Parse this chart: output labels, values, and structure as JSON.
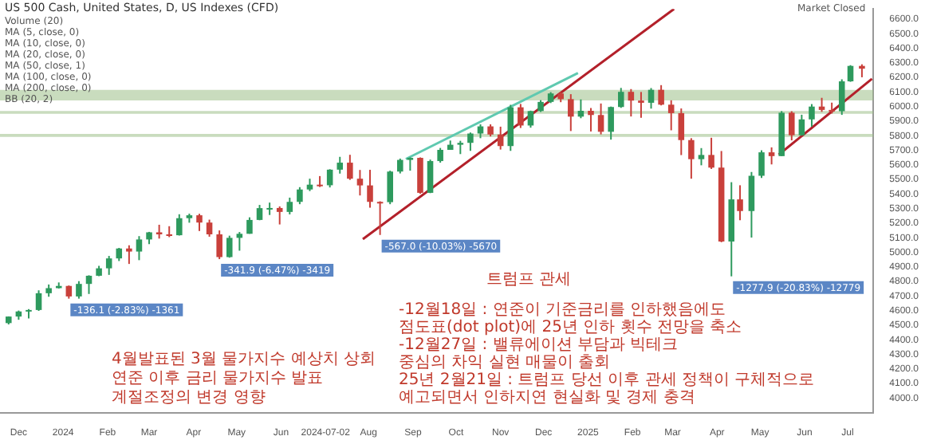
{
  "chart_data": {
    "type": "candlestick",
    "title": "US 500 Cash, United States, D, US Indexes (CFD)",
    "x": [
      "2023-11-24",
      "2023-12-01",
      "2023-12-08",
      "2023-12-15",
      "2023-12-22",
      "2023-12-29",
      "2024-01-05",
      "2024-01-12",
      "2024-01-19",
      "2024-01-26",
      "2024-02-02",
      "2024-02-09",
      "2024-02-16",
      "2024-02-23",
      "2024-03-01",
      "2024-03-08",
      "2024-03-15",
      "2024-03-22",
      "2024-03-29",
      "2024-04-05",
      "2024-04-12",
      "2024-04-19",
      "2024-04-26",
      "2024-05-03",
      "2024-05-10",
      "2024-05-17",
      "2024-05-24",
      "2024-05-31",
      "2024-06-07",
      "2024-06-14",
      "2024-06-21",
      "2024-06-28",
      "2024-07-05",
      "2024-07-12",
      "2024-07-19",
      "2024-07-26",
      "2024-08-02",
      "2024-08-09",
      "2024-08-16",
      "2024-08-23",
      "2024-08-30",
      "2024-09-06",
      "2024-09-13",
      "2024-09-20",
      "2024-09-27",
      "2024-10-04",
      "2024-10-11",
      "2024-10-18",
      "2024-10-25",
      "2024-11-01",
      "2024-11-08",
      "2024-11-15",
      "2024-11-22",
      "2024-11-29",
      "2024-12-06",
      "2024-12-13",
      "2024-12-20",
      "2024-12-27",
      "2025-01-03",
      "2025-01-10",
      "2025-01-17",
      "2025-01-24",
      "2025-01-31",
      "2025-02-07",
      "2025-02-14",
      "2025-02-21",
      "2025-02-28",
      "2025-03-07",
      "2025-03-14",
      "2025-03-21",
      "2025-03-28",
      "2025-04-04",
      "2025-04-11",
      "2025-04-17",
      "2025-04-25",
      "2025-05-02",
      "2025-05-09",
      "2025-05-16",
      "2025-05-23",
      "2025-05-30",
      "2025-06-06",
      "2025-06-13",
      "2025-06-20",
      "2025-06-27",
      "2025-07-03",
      "2025-07-11"
    ],
    "ohlc": [
      [
        4514,
        4560,
        4505,
        4559
      ],
      [
        4559,
        4600,
        4537,
        4594
      ],
      [
        4594,
        4610,
        4546,
        4604
      ],
      [
        4604,
        4739,
        4598,
        4719
      ],
      [
        4719,
        4779,
        4695,
        4754
      ],
      [
        4754,
        4793,
        4751,
        4769
      ],
      [
        4769,
        4772,
        4682,
        4697
      ],
      [
        4697,
        4802,
        4682,
        4783
      ],
      [
        4783,
        4842,
        4714,
        4839
      ],
      [
        4839,
        4907,
        4836,
        4890
      ],
      [
        4890,
        4975,
        4845,
        4958
      ],
      [
        4958,
        5030,
        4940,
        5026
      ],
      [
        5026,
        5048,
        4920,
        5005
      ],
      [
        5005,
        5111,
        4946,
        5088
      ],
      [
        5088,
        5140,
        5056,
        5137
      ],
      [
        5137,
        5189,
        5094,
        5123
      ],
      [
        5123,
        5179,
        5104,
        5117
      ],
      [
        5117,
        5261,
        5115,
        5234
      ],
      [
        5234,
        5265,
        5203,
        5254
      ],
      [
        5254,
        5264,
        5146,
        5204
      ],
      [
        5204,
        5224,
        5107,
        5123
      ],
      [
        5123,
        5150,
        4953,
        4967
      ],
      [
        4967,
        5114,
        4963,
        5099
      ],
      [
        5099,
        5139,
        5011,
        5127
      ],
      [
        5127,
        5240,
        5127,
        5222
      ],
      [
        5222,
        5325,
        5220,
        5303
      ],
      [
        5303,
        5341,
        5256,
        5304
      ],
      [
        5304,
        5315,
        5191,
        5277
      ],
      [
        5277,
        5375,
        5260,
        5346
      ],
      [
        5346,
        5447,
        5330,
        5431
      ],
      [
        5431,
        5505,
        5420,
        5464
      ],
      [
        5464,
        5523,
        5448,
        5460
      ],
      [
        5460,
        5570,
        5445,
        5567
      ],
      [
        5567,
        5655,
        5540,
        5615
      ],
      [
        5615,
        5669,
        5497,
        5505
      ],
      [
        5505,
        5565,
        5390,
        5459
      ],
      [
        5459,
        5566,
        5306,
        5346
      ],
      [
        5346,
        5350,
        5119,
        5344
      ],
      [
        5344,
        5560,
        5330,
        5554
      ],
      [
        5554,
        5643,
        5541,
        5634
      ],
      [
        5634,
        5651,
        5560,
        5648
      ],
      [
        5648,
        5651,
        5402,
        5408
      ],
      [
        5408,
        5636,
        5406,
        5626
      ],
      [
        5626,
        5716,
        5615,
        5703
      ],
      [
        5703,
        5767,
        5703,
        5738
      ],
      [
        5738,
        5765,
        5674,
        5751
      ],
      [
        5751,
        5822,
        5696,
        5815
      ],
      [
        5815,
        5878,
        5783,
        5864
      ],
      [
        5864,
        5878,
        5795,
        5808
      ],
      [
        5808,
        5862,
        5705,
        5729
      ],
      [
        5729,
        6012,
        5696,
        5995
      ],
      [
        5995,
        6018,
        5853,
        5870
      ],
      [
        5870,
        5972,
        5855,
        5969
      ],
      [
        5969,
        6044,
        5963,
        6032
      ],
      [
        6032,
        6099,
        6024,
        6090
      ],
      [
        6090,
        6100,
        6030,
        6051
      ],
      [
        6051,
        6085,
        5832,
        5931
      ],
      [
        5931,
        6049,
        5920,
        5971
      ],
      [
        5971,
        5990,
        5829,
        5942
      ],
      [
        5942,
        6021,
        5809,
        5827
      ],
      [
        5827,
        6000,
        5773,
        5997
      ],
      [
        5997,
        6128,
        5991,
        6101
      ],
      [
        6101,
        6120,
        5932,
        6041
      ],
      [
        6041,
        6100,
        5923,
        6026
      ],
      [
        6026,
        6127,
        5986,
        6115
      ],
      [
        6115,
        6147,
        6008,
        6013
      ],
      [
        6013,
        6043,
        5837,
        5955
      ],
      [
        5955,
        5987,
        5667,
        5770
      ],
      [
        5770,
        5783,
        5505,
        5639
      ],
      [
        5639,
        5715,
        5597,
        5668
      ],
      [
        5668,
        5786,
        5572,
        5581
      ],
      [
        5581,
        5695,
        5069,
        5074
      ],
      [
        5074,
        5481,
        4835,
        5363
      ],
      [
        5363,
        5460,
        5220,
        5283
      ],
      [
        5283,
        5551,
        5101,
        5525
      ],
      [
        5525,
        5700,
        5510,
        5686
      ],
      [
        5686,
        5720,
        5603,
        5660
      ],
      [
        5660,
        5969,
        5660,
        5958
      ],
      [
        5958,
        5968,
        5768,
        5803
      ],
      [
        5803,
        5944,
        5800,
        5912
      ],
      [
        5912,
        6017,
        5862,
        6000
      ],
      [
        6000,
        6060,
        5964,
        5977
      ],
      [
        5977,
        6027,
        5952,
        5968
      ],
      [
        5968,
        6187,
        5943,
        6173
      ],
      [
        6173,
        6284,
        6170,
        6279
      ],
      [
        6279,
        6290,
        6201,
        6260
      ]
    ],
    "colors": [
      "#2e9a5e",
      "#2e9a5e",
      "#2e9a5e",
      "#2e9a5e",
      "#2e9a5e",
      "#2e9a5e",
      "#c9403b",
      "#2e9a5e",
      "#2e9a5e",
      "#2e9a5e",
      "#2e9a5e",
      "#2e9a5e",
      "#c9403b",
      "#2e9a5e",
      "#2e9a5e",
      "#c9403b",
      "#c9403b",
      "#2e9a5e",
      "#2e9a5e",
      "#c9403b",
      "#c9403b",
      "#c9403b",
      "#2e9a5e",
      "#2e9a5e",
      "#2e9a5e",
      "#2e9a5e",
      "#2e9a5e",
      "#c9403b",
      "#2e9a5e",
      "#2e9a5e",
      "#2e9a5e",
      "#c9403b",
      "#2e9a5e",
      "#2e9a5e",
      "#c9403b",
      "#c9403b",
      "#c9403b",
      "#c9403b",
      "#2e9a5e",
      "#2e9a5e",
      "#2e9a5e",
      "#c9403b",
      "#2e9a5e",
      "#2e9a5e",
      "#2e9a5e",
      "#2e9a5e",
      "#2e9a5e",
      "#2e9a5e",
      "#c9403b",
      "#c9403b",
      "#2e9a5e",
      "#c9403b",
      "#2e9a5e",
      "#2e9a5e",
      "#2e9a5e",
      "#c9403b",
      "#c9403b",
      "#2e9a5e",
      "#c9403b",
      "#c9403b",
      "#2e9a5e",
      "#2e9a5e",
      "#c9403b",
      "#c9403b",
      "#2e9a5e",
      "#c9403b",
      "#c9403b",
      "#c9403b",
      "#c9403b",
      "#2e9a5e",
      "#c9403b",
      "#c9403b",
      "#2e9a5e",
      "#c9403b",
      "#2e9a5e",
      "#2e9a5e",
      "#c9403b",
      "#2e9a5e",
      "#c9403b",
      "#2e9a5e",
      "#2e9a5e",
      "#c9403b",
      "#c9403b",
      "#2e9a5e",
      "#2e9a5e",
      "#c9403b"
    ],
    "series": [
      {
        "type": "line",
        "color": "#b3202a",
        "x": [
          "2024-07-28",
          "2025-03-02"
        ],
        "values": [
          5090,
          6670
        ]
      },
      {
        "type": "line",
        "color": "#b3202a",
        "x": [
          "2025-05-14",
          "2025-07-18"
        ],
        "values": [
          5670,
          6190
        ]
      },
      {
        "type": "line",
        "color": "#5fc9b0",
        "x": [
          "2024-08-27",
          "2024-12-25"
        ],
        "values": [
          5640,
          6230
        ]
      }
    ],
    "bands": [
      {
        "axis": "y",
        "from": 6042,
        "to": 6115,
        "color": "#9dbf88"
      },
      {
        "axis": "y",
        "from": 5950,
        "to": 5970,
        "color": "#9dbf88"
      },
      {
        "axis": "y",
        "from": 5792,
        "to": 5812,
        "color": "#9dbf88"
      }
    ],
    "xlim": [
      "2023-11-18",
      "2025-07-19"
    ],
    "xticks": [
      {
        "value": "2023-12-01",
        "label": "Dec"
      },
      {
        "value": "2024-01-01",
        "label": "2024"
      },
      {
        "value": "2024-02-01",
        "label": "Feb"
      },
      {
        "value": "2024-03-01",
        "label": "Mar"
      },
      {
        "value": "2024-04-01",
        "label": "Apr"
      },
      {
        "value": "2024-05-01",
        "label": "May"
      },
      {
        "value": "2024-06-01",
        "label": "Jun"
      },
      {
        "value": "2024-07-02",
        "label": "2024-07-02"
      },
      {
        "value": "2024-08-01",
        "label": "Aug"
      },
      {
        "value": "2024-09-01",
        "label": "Sep"
      },
      {
        "value": "2024-10-01",
        "label": "Oct"
      },
      {
        "value": "2024-11-01",
        "label": "Nov"
      },
      {
        "value": "2024-12-01",
        "label": "Dec"
      },
      {
        "value": "2025-01-01",
        "label": "2025"
      },
      {
        "value": "2025-02-01",
        "label": "Feb"
      },
      {
        "value": "2025-03-01",
        "label": "Mar"
      },
      {
        "value": "2025-04-01",
        "label": "Apr"
      },
      {
        "value": "2025-05-01",
        "label": "May"
      },
      {
        "value": "2025-06-01",
        "label": "Jun"
      },
      {
        "value": "2025-07-01",
        "label": "Jul"
      }
    ],
    "ylim": [
      3900,
      6670
    ],
    "yticks": [
      {
        "value": 4000,
        "label": "4000.0"
      },
      {
        "value": 4100,
        "label": "4100.0"
      },
      {
        "value": 4200,
        "label": "4200.0"
      },
      {
        "value": 4300,
        "label": "4300.0"
      },
      {
        "value": 4400,
        "label": "4400.0"
      },
      {
        "value": 4500,
        "label": "4500.0"
      },
      {
        "value": 4600,
        "label": "4600.0"
      },
      {
        "value": 4700,
        "label": "4700.0"
      },
      {
        "value": 4800,
        "label": "4800.0"
      },
      {
        "value": 4900,
        "label": "4900.0"
      },
      {
        "value": 5000,
        "label": "5000.0"
      },
      {
        "value": 5100,
        "label": "5100.0"
      },
      {
        "value": 5200,
        "label": "5200.0"
      },
      {
        "value": 5300,
        "label": "5300.0"
      },
      {
        "value": 5400,
        "label": "5400.0"
      },
      {
        "value": 5500,
        "label": "5500.0"
      },
      {
        "value": 5600,
        "label": "5600.0"
      },
      {
        "value": 5700,
        "label": "5700.0"
      },
      {
        "value": 5800,
        "label": "5800.0"
      },
      {
        "value": 5900,
        "label": "5900.0"
      },
      {
        "value": 6000,
        "label": "6000.0"
      },
      {
        "value": 6100,
        "label": "6100.0"
      },
      {
        "value": 6200,
        "label": "6200.0"
      },
      {
        "value": 6300,
        "label": "6300.0"
      },
      {
        "value": 6400,
        "label": "6400.0"
      },
      {
        "value": 6500,
        "label": "6500.0"
      },
      {
        "value": 6600,
        "label": "6600.0"
      }
    ],
    "annotations": [
      "Volume (20)\nMA (5, close, 0)\nMA (10, close, 0)\nMA (20, close, 0)\nMA (50, close, 1)\nMA (100, close, 0)\nMA (200, close, 0)\nBB (20, 2)",
      "-12월18일 : 연준이 기준금리를 인하했음에도\n점도표(dot plot)에 25년 인하 횟수 전망을 축소\n-12월27일 : 밸류에이션 부담과 빅테크\n중심의 차익 실현 매물이 출회\n25년 2월21일 : 트럼프 당선 이후 관세 정책이 구체적으로\n예고되면서 인하지연 현실화 및 경제 충격",
      "4월발표된 3월 물가지수 예상치 상회\n연준 이후 금리 물가지수 발표\n계절조정의 변경 영향",
      "트럼프 관세",
      "Market Closed",
      {
        "text": "-136.1 (-2.83%) -1361",
        "x": "2024-01-05",
        "y": 4682
      },
      {
        "text": "-341.9 (-6.47%) -3419",
        "x": "2024-04-19",
        "y": 4953
      },
      {
        "text": "-567.0 (-10.03%) -5670",
        "x": "2024-08-09",
        "y": 5119
      },
      {
        "text": "-1277.9 (-20.83%) -12779",
        "x": "2025-04-11",
        "y": 4835
      }
    ],
    "grid": false,
    "legend": false
  }
}
